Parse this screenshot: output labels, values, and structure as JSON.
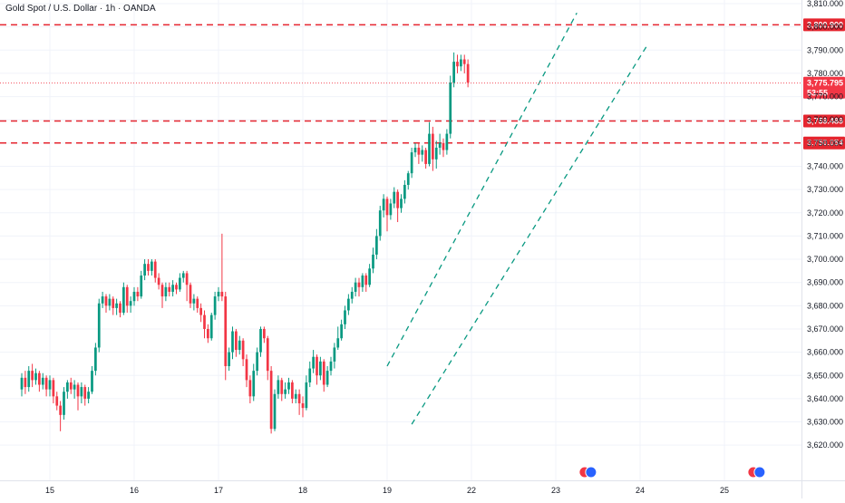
{
  "title": "Gold Spot / U.S. Dollar · 1h · OANDA",
  "colors": {
    "up": "#089981",
    "down": "#f23645",
    "level": "#e5252f",
    "channel": "#089981",
    "grid": "#f0f3fa",
    "axis_text": "#131722"
  },
  "chart_data": {
    "type": "candlestick",
    "symbol": "Gold Spot / U.S. Dollar",
    "interval": "1h",
    "source": "OANDA",
    "ylim": [
      3615,
      3810
    ],
    "x_range_hours": [
      -8,
      256
    ],
    "y_ticks": [
      "3,810.000",
      "3,800.000",
      "3,790.000",
      "3,780.000",
      "3,770.000",
      "3,760.000",
      "3,750.000",
      "3,740.000",
      "3,730.000",
      "3,720.000",
      "3,710.000",
      "3,700.000",
      "3,690.000",
      "3,680.000",
      "3,670.000",
      "3,660.000",
      "3,650.000",
      "3,640.000",
      "3,630.000",
      "3,620.000"
    ],
    "x_ticks": [
      {
        "label": "15",
        "hour": 0
      },
      {
        "label": "16",
        "hour": 24
      },
      {
        "label": "17",
        "hour": 48
      },
      {
        "label": "18",
        "hour": 72
      },
      {
        "label": "19",
        "hour": 96
      },
      {
        "label": "22",
        "hour": 120
      },
      {
        "label": "23",
        "hour": 144
      },
      {
        "label": "24",
        "hour": 168
      },
      {
        "label": "25",
        "hour": 192
      }
    ],
    "horizontal_levels": [
      {
        "value": 3800.9,
        "label": "3,800.900"
      },
      {
        "value": 3759.489,
        "label": "3,759.489"
      },
      {
        "value": 3750.054,
        "label": "3,750.054"
      }
    ],
    "last_price": {
      "value": 3775.795,
      "label": "3,775.795",
      "countdown": "53:55"
    },
    "channel": {
      "upper": [
        {
          "hour": 96,
          "price": 3654
        },
        {
          "hour": 150,
          "price": 3806
        }
      ],
      "lower": [
        {
          "hour": 103,
          "price": 3629
        },
        {
          "hour": 170,
          "price": 3792
        }
      ]
    },
    "event_icons_hours": [
      153,
      201
    ],
    "candles": [
      {
        "h": -8,
        "o": 3644,
        "c": 3649,
        "hi": 3651,
        "lo": 3641
      },
      {
        "h": -7,
        "o": 3649,
        "c": 3645,
        "hi": 3652,
        "lo": 3642
      },
      {
        "h": -6,
        "o": 3645,
        "c": 3652,
        "hi": 3654,
        "lo": 3643
      },
      {
        "h": -5,
        "o": 3652,
        "c": 3648,
        "hi": 3655,
        "lo": 3645
      },
      {
        "h": -4,
        "o": 3648,
        "c": 3651,
        "hi": 3653,
        "lo": 3646
      },
      {
        "h": -3,
        "o": 3651,
        "c": 3646,
        "hi": 3652,
        "lo": 3643
      },
      {
        "h": -2,
        "o": 3646,
        "c": 3649,
        "hi": 3651,
        "lo": 3644
      },
      {
        "h": -1,
        "o": 3649,
        "c": 3644,
        "hi": 3650,
        "lo": 3641
      },
      {
        "h": 0,
        "o": 3644,
        "c": 3648,
        "hi": 3650,
        "lo": 3641
      },
      {
        "h": 1,
        "o": 3648,
        "c": 3641,
        "hi": 3649,
        "lo": 3638
      },
      {
        "h": 2,
        "o": 3641,
        "c": 3637,
        "hi": 3643,
        "lo": 3635
      },
      {
        "h": 3,
        "o": 3637,
        "c": 3633,
        "hi": 3639,
        "lo": 3626
      },
      {
        "h": 4,
        "o": 3633,
        "c": 3643,
        "hi": 3645,
        "lo": 3631
      },
      {
        "h": 5,
        "o": 3643,
        "c": 3647,
        "hi": 3648,
        "lo": 3640
      },
      {
        "h": 6,
        "o": 3647,
        "c": 3644,
        "hi": 3649,
        "lo": 3642
      },
      {
        "h": 7,
        "o": 3644,
        "c": 3646,
        "hi": 3648,
        "lo": 3640
      },
      {
        "h": 8,
        "o": 3646,
        "c": 3641,
        "hi": 3647,
        "lo": 3635
      },
      {
        "h": 9,
        "o": 3641,
        "c": 3645,
        "hi": 3647,
        "lo": 3638
      },
      {
        "h": 10,
        "o": 3645,
        "c": 3640,
        "hi": 3646,
        "lo": 3637
      },
      {
        "h": 11,
        "o": 3640,
        "c": 3643,
        "hi": 3645,
        "lo": 3638
      },
      {
        "h": 12,
        "o": 3643,
        "c": 3652,
        "hi": 3654,
        "lo": 3642
      },
      {
        "h": 13,
        "o": 3652,
        "c": 3662,
        "hi": 3664,
        "lo": 3650
      },
      {
        "h": 14,
        "o": 3662,
        "c": 3681,
        "hi": 3683,
        "lo": 3660
      },
      {
        "h": 15,
        "o": 3681,
        "c": 3684,
        "hi": 3686,
        "lo": 3679
      },
      {
        "h": 16,
        "o": 3684,
        "c": 3680,
        "hi": 3685,
        "lo": 3677
      },
      {
        "h": 17,
        "o": 3680,
        "c": 3683,
        "hi": 3685,
        "lo": 3678
      },
      {
        "h": 18,
        "o": 3683,
        "c": 3679,
        "hi": 3684,
        "lo": 3676
      },
      {
        "h": 19,
        "o": 3679,
        "c": 3681,
        "hi": 3683,
        "lo": 3676
      },
      {
        "h": 20,
        "o": 3681,
        "c": 3677,
        "hi": 3682,
        "lo": 3675
      },
      {
        "h": 21,
        "o": 3677,
        "c": 3688,
        "hi": 3690,
        "lo": 3676
      },
      {
        "h": 22,
        "o": 3688,
        "c": 3680,
        "hi": 3689,
        "lo": 3677
      },
      {
        "h": 23,
        "o": 3680,
        "c": 3682,
        "hi": 3684,
        "lo": 3677
      },
      {
        "h": 24,
        "o": 3682,
        "c": 3686,
        "hi": 3688,
        "lo": 3680
      },
      {
        "h": 25,
        "o": 3686,
        "c": 3684,
        "hi": 3688,
        "lo": 3682
      },
      {
        "h": 26,
        "o": 3684,
        "c": 3693,
        "hi": 3695,
        "lo": 3683
      },
      {
        "h": 27,
        "o": 3693,
        "c": 3698,
        "hi": 3700,
        "lo": 3691
      },
      {
        "h": 28,
        "o": 3698,
        "c": 3695,
        "hi": 3700,
        "lo": 3693
      },
      {
        "h": 29,
        "o": 3695,
        "c": 3699,
        "hi": 3700,
        "lo": 3693
      },
      {
        "h": 30,
        "o": 3699,
        "c": 3692,
        "hi": 3700,
        "lo": 3690
      },
      {
        "h": 31,
        "o": 3692,
        "c": 3689,
        "hi": 3694,
        "lo": 3687
      },
      {
        "h": 32,
        "o": 3689,
        "c": 3684,
        "hi": 3690,
        "lo": 3679
      },
      {
        "h": 33,
        "o": 3684,
        "c": 3688,
        "hi": 3690,
        "lo": 3682
      },
      {
        "h": 34,
        "o": 3688,
        "c": 3686,
        "hi": 3690,
        "lo": 3684
      },
      {
        "h": 35,
        "o": 3686,
        "c": 3689,
        "hi": 3691,
        "lo": 3684
      },
      {
        "h": 36,
        "o": 3689,
        "c": 3687,
        "hi": 3690,
        "lo": 3685
      },
      {
        "h": 37,
        "o": 3687,
        "c": 3692,
        "hi": 3694,
        "lo": 3686
      },
      {
        "h": 38,
        "o": 3692,
        "c": 3694,
        "hi": 3695,
        "lo": 3690
      },
      {
        "h": 39,
        "o": 3694,
        "c": 3689,
        "hi": 3695,
        "lo": 3682
      },
      {
        "h": 40,
        "o": 3689,
        "c": 3681,
        "hi": 3690,
        "lo": 3679
      },
      {
        "h": 41,
        "o": 3681,
        "c": 3683,
        "hi": 3685,
        "lo": 3678
      },
      {
        "h": 42,
        "o": 3683,
        "c": 3679,
        "hi": 3684,
        "lo": 3677
      },
      {
        "h": 43,
        "o": 3679,
        "c": 3676,
        "hi": 3681,
        "lo": 3673
      },
      {
        "h": 44,
        "o": 3676,
        "c": 3670,
        "hi": 3678,
        "lo": 3666
      },
      {
        "h": 45,
        "o": 3670,
        "c": 3666,
        "hi": 3672,
        "lo": 3664
      },
      {
        "h": 46,
        "o": 3666,
        "c": 3676,
        "hi": 3677,
        "lo": 3665
      },
      {
        "h": 47,
        "o": 3676,
        "c": 3684,
        "hi": 3686,
        "lo": 3674
      },
      {
        "h": 48,
        "o": 3684,
        "c": 3686,
        "hi": 3688,
        "lo": 3682
      },
      {
        "h": 49,
        "o": 3686,
        "c": 3684,
        "hi": 3711,
        "lo": 3682
      },
      {
        "h": 50,
        "o": 3684,
        "c": 3654,
        "hi": 3686,
        "lo": 3648
      },
      {
        "h": 51,
        "o": 3654,
        "c": 3660,
        "hi": 3662,
        "lo": 3652
      },
      {
        "h": 52,
        "o": 3660,
        "c": 3669,
        "hi": 3671,
        "lo": 3657
      },
      {
        "h": 53,
        "o": 3669,
        "c": 3661,
        "hi": 3670,
        "lo": 3658
      },
      {
        "h": 54,
        "o": 3661,
        "c": 3665,
        "hi": 3667,
        "lo": 3659
      },
      {
        "h": 55,
        "o": 3665,
        "c": 3657,
        "hi": 3666,
        "lo": 3654
      },
      {
        "h": 56,
        "o": 3657,
        "c": 3648,
        "hi": 3659,
        "lo": 3645
      },
      {
        "h": 57,
        "o": 3648,
        "c": 3641,
        "hi": 3650,
        "lo": 3638
      },
      {
        "h": 58,
        "o": 3641,
        "c": 3652,
        "hi": 3655,
        "lo": 3639
      },
      {
        "h": 59,
        "o": 3652,
        "c": 3660,
        "hi": 3662,
        "lo": 3650
      },
      {
        "h": 60,
        "o": 3660,
        "c": 3670,
        "hi": 3671,
        "lo": 3658
      },
      {
        "h": 61,
        "o": 3670,
        "c": 3666,
        "hi": 3671,
        "lo": 3664
      },
      {
        "h": 62,
        "o": 3666,
        "c": 3652,
        "hi": 3667,
        "lo": 3648
      },
      {
        "h": 63,
        "o": 3652,
        "c": 3627,
        "hi": 3654,
        "lo": 3625
      },
      {
        "h": 64,
        "o": 3627,
        "c": 3642,
        "hi": 3644,
        "lo": 3626
      },
      {
        "h": 65,
        "o": 3642,
        "c": 3648,
        "hi": 3650,
        "lo": 3640
      },
      {
        "h": 66,
        "o": 3648,
        "c": 3642,
        "hi": 3649,
        "lo": 3639
      },
      {
        "h": 67,
        "o": 3642,
        "c": 3644,
        "hi": 3647,
        "lo": 3640
      },
      {
        "h": 68,
        "o": 3644,
        "c": 3647,
        "hi": 3649,
        "lo": 3642
      },
      {
        "h": 69,
        "o": 3647,
        "c": 3640,
        "hi": 3648,
        "lo": 3638
      },
      {
        "h": 70,
        "o": 3640,
        "c": 3642,
        "hi": 3644,
        "lo": 3638
      },
      {
        "h": 71,
        "o": 3642,
        "c": 3638,
        "hi": 3644,
        "lo": 3633
      },
      {
        "h": 72,
        "o": 3638,
        "c": 3636,
        "hi": 3641,
        "lo": 3632
      },
      {
        "h": 73,
        "o": 3636,
        "c": 3647,
        "hi": 3650,
        "lo": 3635
      },
      {
        "h": 74,
        "o": 3647,
        "c": 3653,
        "hi": 3656,
        "lo": 3645
      },
      {
        "h": 75,
        "o": 3653,
        "c": 3658,
        "hi": 3661,
        "lo": 3651
      },
      {
        "h": 76,
        "o": 3658,
        "c": 3650,
        "hi": 3659,
        "lo": 3646
      },
      {
        "h": 77,
        "o": 3650,
        "c": 3656,
        "hi": 3658,
        "lo": 3648
      },
      {
        "h": 78,
        "o": 3656,
        "c": 3646,
        "hi": 3657,
        "lo": 3643
      },
      {
        "h": 79,
        "o": 3646,
        "c": 3652,
        "hi": 3654,
        "lo": 3645
      },
      {
        "h": 80,
        "o": 3652,
        "c": 3656,
        "hi": 3658,
        "lo": 3650
      },
      {
        "h": 81,
        "o": 3656,
        "c": 3662,
        "hi": 3664,
        "lo": 3653
      },
      {
        "h": 82,
        "o": 3662,
        "c": 3666,
        "hi": 3671,
        "lo": 3661
      },
      {
        "h": 83,
        "o": 3666,
        "c": 3672,
        "hi": 3674,
        "lo": 3665
      },
      {
        "h": 84,
        "o": 3672,
        "c": 3678,
        "hi": 3680,
        "lo": 3670
      },
      {
        "h": 85,
        "o": 3678,
        "c": 3683,
        "hi": 3685,
        "lo": 3676
      },
      {
        "h": 86,
        "o": 3683,
        "c": 3686,
        "hi": 3688,
        "lo": 3681
      },
      {
        "h": 87,
        "o": 3686,
        "c": 3690,
        "hi": 3692,
        "lo": 3684
      },
      {
        "h": 88,
        "o": 3690,
        "c": 3688,
        "hi": 3692,
        "lo": 3684
      },
      {
        "h": 89,
        "o": 3688,
        "c": 3693,
        "hi": 3694,
        "lo": 3686
      },
      {
        "h": 90,
        "o": 3693,
        "c": 3689,
        "hi": 3694,
        "lo": 3686
      },
      {
        "h": 91,
        "o": 3689,
        "c": 3696,
        "hi": 3698,
        "lo": 3688
      },
      {
        "h": 92,
        "o": 3696,
        "c": 3702,
        "hi": 3705,
        "lo": 3694
      },
      {
        "h": 93,
        "o": 3702,
        "c": 3710,
        "hi": 3713,
        "lo": 3700
      },
      {
        "h": 94,
        "o": 3710,
        "c": 3721,
        "hi": 3723,
        "lo": 3708
      },
      {
        "h": 95,
        "o": 3721,
        "c": 3726,
        "hi": 3728,
        "lo": 3718
      },
      {
        "h": 96,
        "o": 3726,
        "c": 3719,
        "hi": 3727,
        "lo": 3712
      },
      {
        "h": 97,
        "o": 3719,
        "c": 3724,
        "hi": 3726,
        "lo": 3717
      },
      {
        "h": 98,
        "o": 3724,
        "c": 3729,
        "hi": 3731,
        "lo": 3722
      },
      {
        "h": 99,
        "o": 3729,
        "c": 3722,
        "hi": 3730,
        "lo": 3716
      },
      {
        "h": 100,
        "o": 3722,
        "c": 3726,
        "hi": 3728,
        "lo": 3720
      },
      {
        "h": 101,
        "o": 3726,
        "c": 3732,
        "hi": 3734,
        "lo": 3724
      },
      {
        "h": 102,
        "o": 3732,
        "c": 3737,
        "hi": 3738,
        "lo": 3730
      },
      {
        "h": 103,
        "o": 3737,
        "c": 3746,
        "hi": 3748,
        "lo": 3735
      },
      {
        "h": 104,
        "o": 3746,
        "c": 3748,
        "hi": 3750,
        "lo": 3744
      },
      {
        "h": 105,
        "o": 3748,
        "c": 3745,
        "hi": 3750,
        "lo": 3741
      },
      {
        "h": 106,
        "o": 3745,
        "c": 3747,
        "hi": 3749,
        "lo": 3742
      },
      {
        "h": 107,
        "o": 3747,
        "c": 3741,
        "hi": 3748,
        "lo": 3739
      },
      {
        "h": 108,
        "o": 3741,
        "c": 3754,
        "hi": 3759,
        "lo": 3740
      },
      {
        "h": 109,
        "o": 3754,
        "c": 3743,
        "hi": 3757,
        "lo": 3738
      },
      {
        "h": 110,
        "o": 3743,
        "c": 3748,
        "hi": 3751,
        "lo": 3739
      },
      {
        "h": 111,
        "o": 3748,
        "c": 3750,
        "hi": 3754,
        "lo": 3745
      },
      {
        "h": 112,
        "o": 3750,
        "c": 3747,
        "hi": 3752,
        "lo": 3744
      },
      {
        "h": 113,
        "o": 3747,
        "c": 3754,
        "hi": 3756,
        "lo": 3745
      },
      {
        "h": 114,
        "o": 3754,
        "c": 3776,
        "hi": 3779,
        "lo": 3752
      },
      {
        "h": 115,
        "o": 3776,
        "c": 3785,
        "hi": 3789,
        "lo": 3774
      },
      {
        "h": 116,
        "o": 3785,
        "c": 3783,
        "hi": 3788,
        "lo": 3780
      },
      {
        "h": 117,
        "o": 3783,
        "c": 3786,
        "hi": 3788,
        "lo": 3781
      },
      {
        "h": 118,
        "o": 3786,
        "c": 3784,
        "hi": 3788,
        "lo": 3780
      },
      {
        "h": 119,
        "o": 3784,
        "c": 3776,
        "hi": 3786,
        "lo": 3774
      }
    ]
  }
}
